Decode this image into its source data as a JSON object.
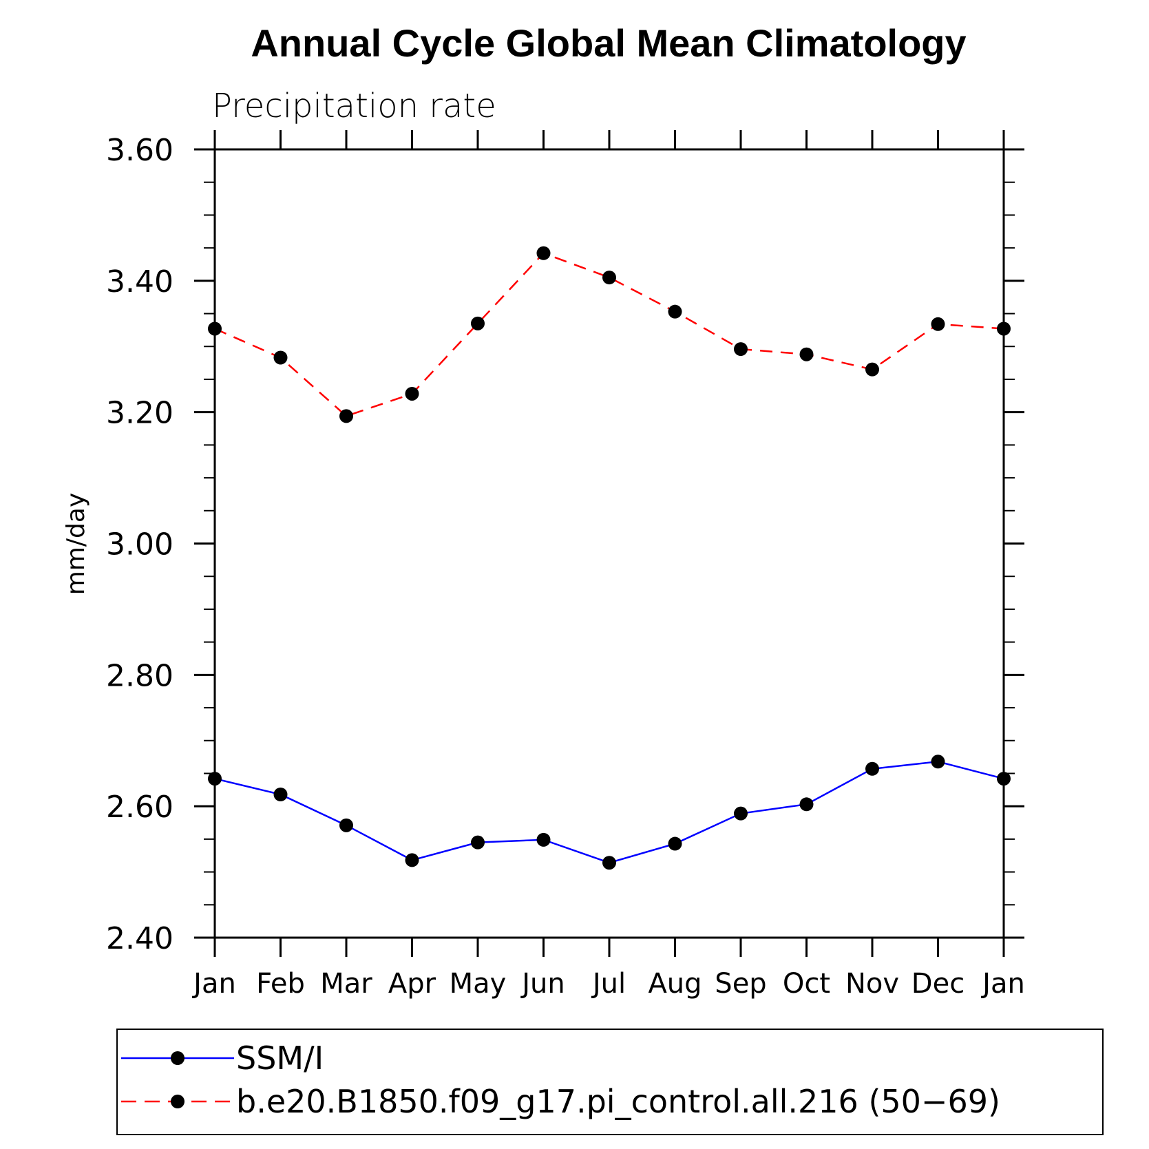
{
  "chart_data": {
    "type": "line",
    "title": "Annual Cycle Global Mean Climatology",
    "subtitle": "Precipitation rate",
    "xlabel": "",
    "ylabel": "mm/day",
    "ylim": [
      2.4,
      3.6
    ],
    "yticks": [
      "2.40",
      "2.60",
      "2.80",
      "3.00",
      "3.20",
      "3.40",
      "3.60"
    ],
    "categories": [
      "Jan",
      "Feb",
      "Mar",
      "Apr",
      "May",
      "Jun",
      "Jul",
      "Aug",
      "Sep",
      "Oct",
      "Nov",
      "Dec",
      "Jan"
    ],
    "grid": false,
    "legend_position": "bottom",
    "series": [
      {
        "name": "SSM/I",
        "color": "#0000ff",
        "dashed": false,
        "values": [
          2.642,
          2.618,
          2.571,
          2.518,
          2.545,
          2.549,
          2.514,
          2.543,
          2.589,
          2.603,
          2.657,
          2.668,
          2.642
        ]
      },
      {
        "name": "b.e20.B1850.f09_g17.pi_control.all.216 (50−69)",
        "color": "#ff0000",
        "dashed": true,
        "values": [
          3.327,
          3.283,
          3.194,
          3.228,
          3.335,
          3.442,
          3.405,
          3.353,
          3.296,
          3.288,
          3.265,
          3.334,
          3.327
        ]
      }
    ]
  }
}
